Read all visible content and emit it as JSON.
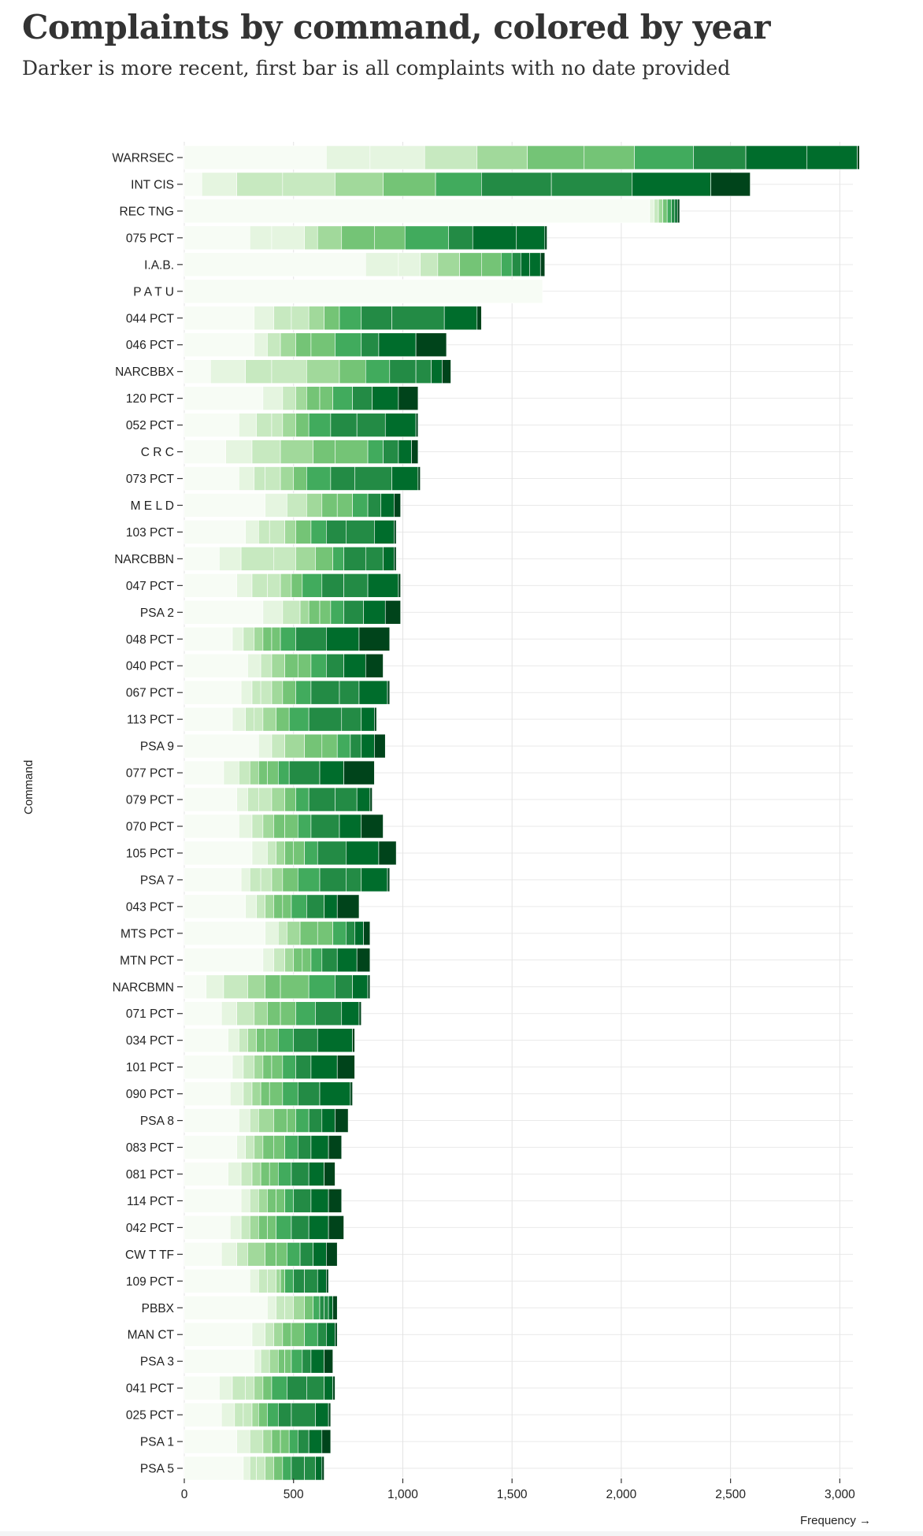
{
  "title": "Complaints by command, colored by year",
  "subtitle": "Darker is more recent, first bar is all complaints with no date provided",
  "chart_data": {
    "type": "bar",
    "orientation": "horizontal",
    "stacked": true,
    "title": "Complaints by command, colored by year",
    "subtitle": "Darker is more recent, first bar is all complaints with no date provided",
    "xlabel": "Frequency →",
    "ylabel": "Command",
    "xlim": [
      0,
      3060
    ],
    "x_ticks": [
      0,
      500,
      1000,
      1500,
      2000,
      2500,
      3000
    ],
    "x_tick_labels": [
      "0",
      "500",
      "1,000",
      "1,500",
      "2,000",
      "2,500",
      "3,000"
    ],
    "grid": "vertical",
    "legend": "none",
    "color_scale": [
      "#f7fcf5",
      "#e5f5e0",
      "#c7e9c0",
      "#a1d99b",
      "#74c476",
      "#41ab5d",
      "#238b45",
      "#006d2c",
      "#00441b"
    ],
    "categories": [
      "WARRSEC",
      "INT CIS",
      "REC TNG",
      "075 PCT",
      "I.A.B.",
      "P A T U",
      "044 PCT",
      "046 PCT",
      "NARCBBX",
      "120 PCT",
      "052 PCT",
      "C R C",
      "073 PCT",
      "M E L D",
      "103 PCT",
      "NARCBBN",
      "047 PCT",
      "PSA 2",
      "048 PCT",
      "040 PCT",
      "067 PCT",
      "113 PCT",
      "PSA 9",
      "077 PCT",
      "079 PCT",
      "070 PCT",
      "105 PCT",
      "PSA 7",
      "043 PCT",
      "MTS PCT",
      "MTN PCT",
      "NARCBMN",
      "071 PCT",
      "034 PCT",
      "101 PCT",
      "090 PCT",
      "PSA 8",
      "083 PCT",
      "081 PCT",
      "114 PCT",
      "042 PCT",
      "CW T TF",
      "109 PCT",
      "PBBX",
      "MAN CT",
      "PSA 3",
      "041 PCT",
      "025 PCT",
      "PSA 1",
      "PSA 5"
    ],
    "segments": [
      [
        650,
        200,
        250,
        240,
        230,
        260,
        230,
        270,
        240,
        280,
        230,
        10
      ],
      [
        80,
        160,
        210,
        240,
        220,
        240,
        210,
        320,
        370,
        360,
        180
      ],
      [
        2130,
        20,
        20,
        20,
        20,
        20,
        15,
        12,
        10
      ],
      [
        300,
        100,
        150,
        60,
        110,
        150,
        140,
        200,
        110,
        200,
        130,
        10
      ],
      [
        830,
        150,
        100,
        80,
        100,
        100,
        90,
        50,
        40,
        40,
        50,
        20
      ],
      [
        1640
      ],
      [
        320,
        90,
        80,
        80,
        70,
        70,
        100,
        140,
        240,
        150,
        20
      ],
      [
        320,
        60,
        60,
        70,
        70,
        110,
        120,
        80,
        170,
        140
      ],
      [
        120,
        160,
        120,
        160,
        150,
        120,
        110,
        120,
        70,
        50,
        40
      ],
      [
        360,
        90,
        60,
        50,
        60,
        60,
        90,
        90,
        120,
        90
      ],
      [
        250,
        80,
        70,
        50,
        60,
        60,
        100,
        120,
        130,
        140,
        10
      ],
      [
        190,
        120,
        130,
        150,
        100,
        150,
        70,
        70,
        60,
        30
      ],
      [
        250,
        70,
        50,
        70,
        60,
        60,
        110,
        110,
        170,
        120,
        10
      ],
      [
        370,
        100,
        90,
        70,
        70,
        70,
        70,
        60,
        60,
        30
      ],
      [
        280,
        60,
        50,
        70,
        50,
        70,
        70,
        90,
        130,
        90,
        10
      ],
      [
        160,
        100,
        150,
        100,
        90,
        80,
        50,
        100,
        80,
        50,
        10
      ],
      [
        240,
        70,
        70,
        60,
        50,
        50,
        90,
        100,
        110,
        140,
        10
      ],
      [
        360,
        90,
        80,
        40,
        50,
        50,
        60,
        90,
        100,
        70
      ],
      [
        220,
        50,
        50,
        40,
        40,
        40,
        70,
        140,
        150,
        140
      ],
      [
        290,
        60,
        50,
        60,
        60,
        60,
        70,
        80,
        100,
        80
      ],
      [
        260,
        50,
        40,
        50,
        50,
        60,
        70,
        130,
        90,
        130,
        10
      ],
      [
        220,
        60,
        40,
        40,
        60,
        60,
        90,
        150,
        90,
        60,
        10
      ],
      [
        340,
        60,
        60,
        90,
        80,
        70,
        60,
        50,
        60,
        50
      ],
      [
        180,
        70,
        50,
        40,
        40,
        50,
        50,
        140,
        110,
        140
      ],
      [
        240,
        50,
        50,
        60,
        60,
        50,
        60,
        120,
        100,
        60,
        10
      ],
      [
        250,
        60,
        50,
        50,
        50,
        60,
        60,
        130,
        100,
        100
      ],
      [
        310,
        70,
        40,
        40,
        40,
        50,
        60,
        130,
        150,
        80
      ],
      [
        260,
        40,
        50,
        50,
        50,
        70,
        100,
        120,
        70,
        120,
        10
      ],
      [
        280,
        50,
        40,
        40,
        40,
        40,
        70,
        80,
        60,
        100
      ],
      [
        370,
        60,
        40,
        60,
        80,
        70,
        60,
        40,
        40,
        30
      ],
      [
        360,
        50,
        50,
        40,
        40,
        40,
        50,
        70,
        90,
        60
      ],
      [
        100,
        80,
        110,
        80,
        70,
        130,
        120,
        80,
        70,
        10
      ],
      [
        170,
        70,
        80,
        60,
        60,
        70,
        90,
        120,
        80,
        10
      ],
      [
        200,
        50,
        40,
        40,
        40,
        60,
        70,
        110,
        160,
        10
      ],
      [
        220,
        50,
        50,
        40,
        40,
        50,
        60,
        70,
        120,
        80
      ],
      [
        210,
        60,
        40,
        40,
        40,
        60,
        70,
        100,
        140,
        10
      ],
      [
        250,
        50,
        40,
        70,
        60,
        40,
        60,
        60,
        60,
        60
      ],
      [
        240,
        40,
        40,
        40,
        50,
        50,
        60,
        60,
        80,
        60
      ],
      [
        200,
        60,
        50,
        40,
        40,
        40,
        60,
        80,
        70,
        50
      ],
      [
        260,
        40,
        40,
        40,
        40,
        40,
        40,
        80,
        80,
        60
      ],
      [
        210,
        50,
        40,
        40,
        40,
        40,
        70,
        80,
        90,
        70
      ],
      [
        170,
        70,
        50,
        80,
        50,
        50,
        60,
        60,
        60,
        50
      ],
      [
        300,
        40,
        40,
        40,
        20,
        20,
        40,
        50,
        60,
        40,
        10
      ],
      [
        380,
        40,
        40,
        40,
        50,
        40,
        30,
        20,
        20,
        20,
        20
      ],
      [
        310,
        60,
        40,
        40,
        40,
        60,
        60,
        40,
        40,
        10
      ],
      [
        320,
        30,
        40,
        40,
        30,
        30,
        50,
        40,
        60,
        40
      ],
      [
        160,
        60,
        60,
        40,
        40,
        40,
        70,
        90,
        80,
        40,
        10
      ],
      [
        170,
        60,
        40,
        40,
        30,
        40,
        50,
        60,
        110,
        60,
        10
      ],
      [
        240,
        60,
        60,
        40,
        40,
        40,
        40,
        50,
        60,
        40
      ],
      [
        270,
        30,
        30,
        40,
        40,
        40,
        40,
        60,
        50,
        30,
        10
      ]
    ]
  }
}
